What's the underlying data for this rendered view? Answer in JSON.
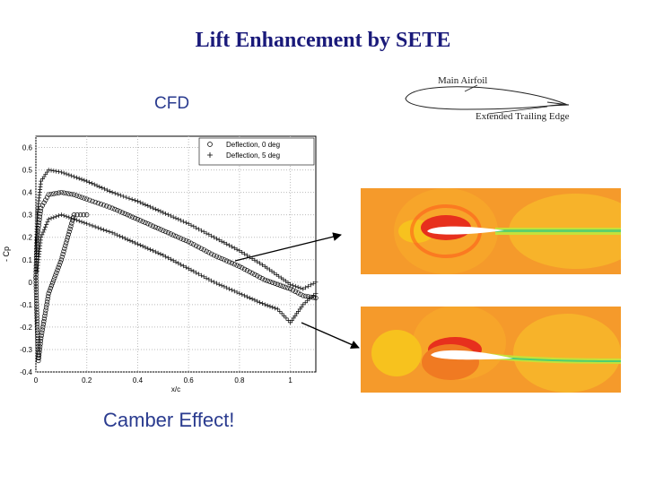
{
  "slide": {
    "title": "Lift Enhancement by SETE",
    "cfd_label": "CFD",
    "caption": "Camber Effect!",
    "schematic": {
      "main_label": "Main Airfoil",
      "ext_label": "Extended Trailing Edge"
    }
  },
  "colors": {
    "title": "#1a1a7a",
    "text": "#2a3b8f",
    "field": "#f59a2b",
    "low": "#f04010",
    "high": "#f7c21e"
  },
  "chart_data": {
    "type": "scatter",
    "title": "",
    "xlabel": "x/c",
    "ylabel": "- Cp",
    "xlim": [
      0,
      1.1
    ],
    "ylim": [
      -0.4,
      0.65
    ],
    "xticks": [
      0,
      0.2,
      0.4,
      0.6,
      0.8,
      1
    ],
    "yticks": [
      -0.4,
      -0.3,
      -0.2,
      -0.1,
      0,
      0.1,
      0.2,
      0.3,
      0.4,
      0.5,
      0.6
    ],
    "grid": true,
    "legend_position": "top-right",
    "series": [
      {
        "name": "Deflection, 0 deg",
        "marker": "circle",
        "upper": [
          [
            0,
            0.02
          ],
          [
            0.005,
            0.2
          ],
          [
            0.02,
            0.33
          ],
          [
            0.05,
            0.39
          ],
          [
            0.1,
            0.4
          ],
          [
            0.15,
            0.39
          ],
          [
            0.2,
            0.37
          ],
          [
            0.3,
            0.33
          ],
          [
            0.4,
            0.28
          ],
          [
            0.5,
            0.23
          ],
          [
            0.6,
            0.18
          ],
          [
            0.7,
            0.12
          ],
          [
            0.8,
            0.07
          ],
          [
            0.9,
            0.01
          ],
          [
            0.95,
            -0.01
          ],
          [
            1.0,
            -0.03
          ],
          [
            1.05,
            -0.06
          ],
          [
            1.1,
            -0.07
          ]
        ],
        "lower": [
          [
            0,
            0.02
          ],
          [
            0.005,
            -0.2
          ],
          [
            0.01,
            -0.35
          ],
          [
            0.02,
            -0.25
          ],
          [
            0.05,
            -0.05
          ],
          [
            0.1,
            0.1
          ],
          [
            0.15,
            0.3
          ],
          [
            0.2,
            0.3
          ]
        ]
      },
      {
        "name": "Deflection, 5 deg",
        "marker": "plus",
        "upper": [
          [
            0,
            0.05
          ],
          [
            0.005,
            0.3
          ],
          [
            0.02,
            0.45
          ],
          [
            0.05,
            0.5
          ],
          [
            0.1,
            0.49
          ],
          [
            0.15,
            0.47
          ],
          [
            0.2,
            0.45
          ],
          [
            0.3,
            0.4
          ],
          [
            0.4,
            0.36
          ],
          [
            0.5,
            0.31
          ],
          [
            0.6,
            0.26
          ],
          [
            0.7,
            0.2
          ],
          [
            0.8,
            0.14
          ],
          [
            0.9,
            0.07
          ],
          [
            1.0,
            -0.01
          ],
          [
            1.05,
            -0.03
          ],
          [
            1.1,
            0
          ]
        ],
        "lower": [
          [
            0,
            0.05
          ],
          [
            0.005,
            0.05
          ],
          [
            0.02,
            0.2
          ],
          [
            0.05,
            0.28
          ],
          [
            0.1,
            0.3
          ],
          [
            0.15,
            0.28
          ],
          [
            0.2,
            0.26
          ],
          [
            0.3,
            0.22
          ],
          [
            0.4,
            0.17
          ],
          [
            0.5,
            0.12
          ],
          [
            0.6,
            0.06
          ],
          [
            0.7,
            0
          ],
          [
            0.8,
            -0.05
          ],
          [
            0.9,
            -0.1
          ],
          [
            0.95,
            -0.12
          ],
          [
            1.0,
            -0.18
          ],
          [
            1.05,
            -0.1
          ],
          [
            1.1,
            -0.05
          ]
        ]
      }
    ]
  }
}
